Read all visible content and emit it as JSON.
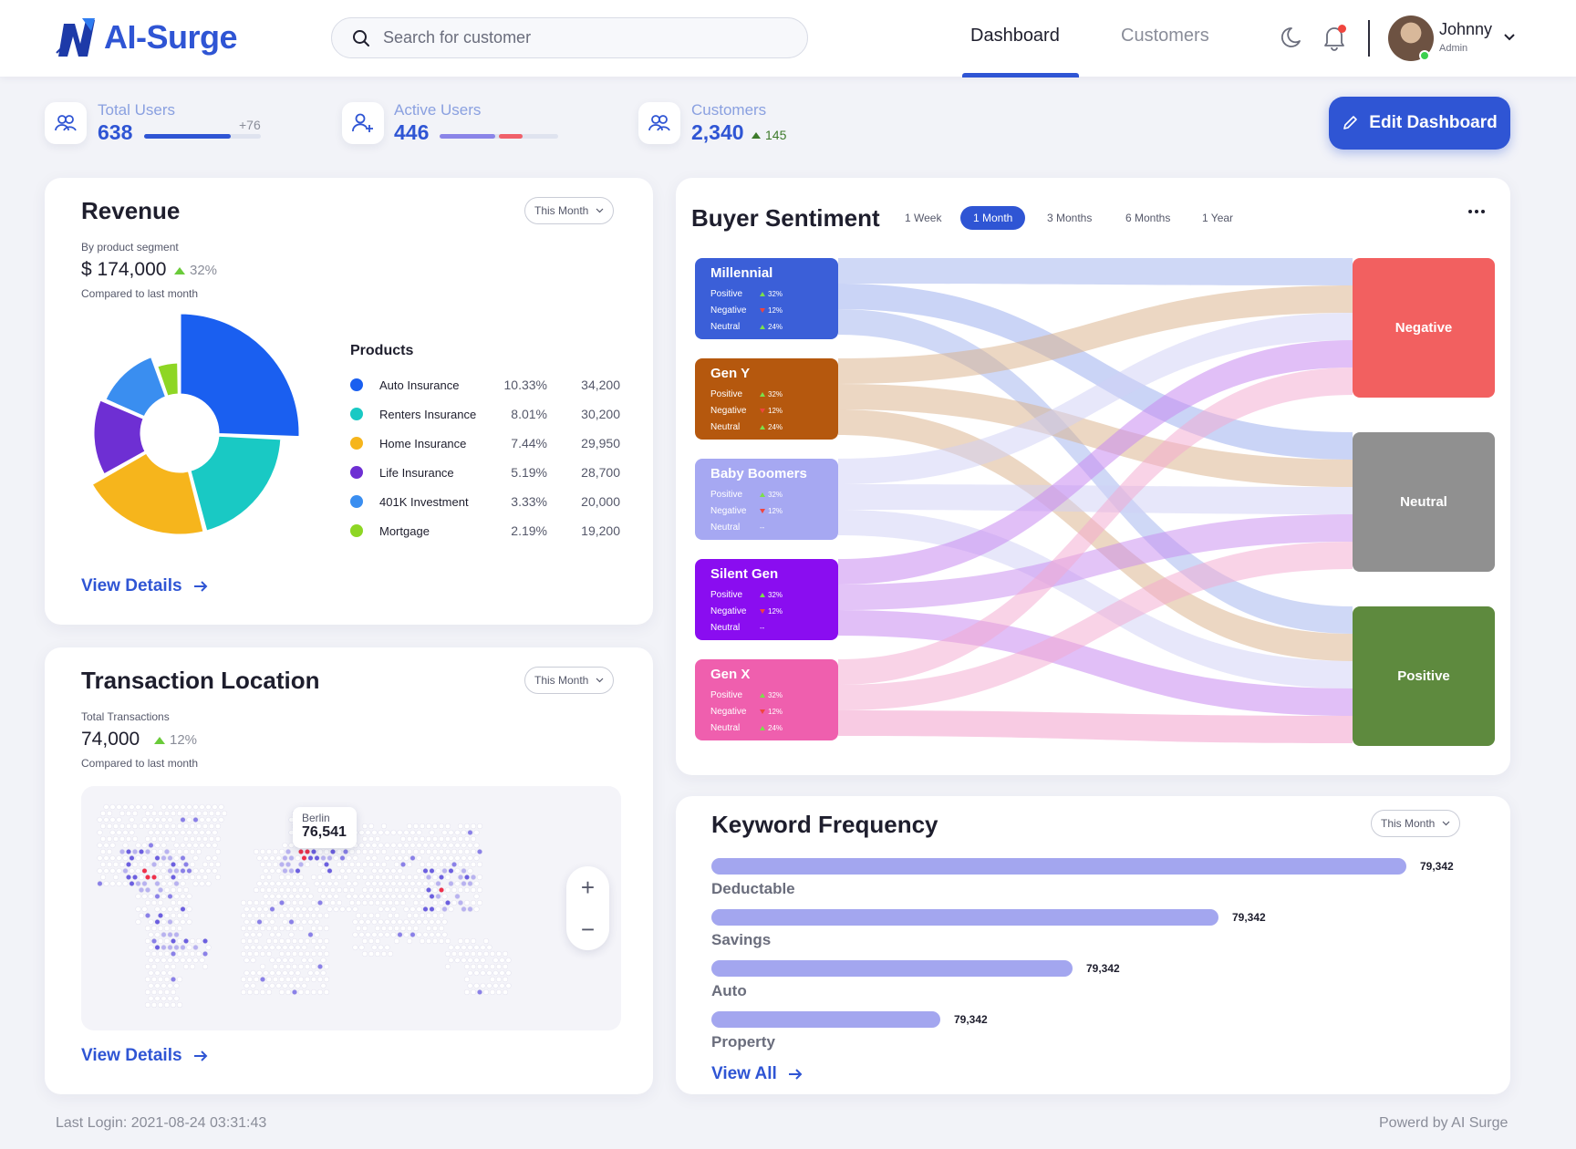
{
  "app": {
    "logo_text": "AI-Surge"
  },
  "header": {
    "search_placeholder": "Search for customer",
    "nav": {
      "dashboard": "Dashboard",
      "customers": "Customers"
    },
    "user": {
      "name": "Johnny",
      "role": "Admin"
    }
  },
  "stats": {
    "total_users": {
      "label": "Total Users",
      "value": "638",
      "delta": "+76",
      "progress": 0.74
    },
    "active_users": {
      "label": "Active Users",
      "value": "446",
      "segments": [
        0.47,
        0.2
      ]
    },
    "customers": {
      "label": "Customers",
      "value": "2,340",
      "delta": "145"
    }
  },
  "edit_dashboard_label": "Edit Dashboard",
  "revenue": {
    "title": "Revenue",
    "period": "This Month",
    "subtitle": "By product segment",
    "amount": "$ 174,000",
    "change": "32%",
    "compare": "Compared to last month",
    "products_title": "Products",
    "view_details": "View Details",
    "colors": {
      "auto": "#1a5ff0",
      "renters": "#19c9c4",
      "home": "#f6b51c",
      "life": "#6e2fd3",
      "k401": "#3a8ef0",
      "mortgage": "#8ed624"
    },
    "products": [
      {
        "name": "Auto Insurance",
        "pct": "10.33%",
        "value": "34,200"
      },
      {
        "name": "Renters Insurance",
        "pct": "8.01%",
        "value": "30,200"
      },
      {
        "name": "Home Insurance",
        "pct": "7.44%",
        "value": "29,950"
      },
      {
        "name": "Life Insurance",
        "pct": "5.19%",
        "value": "28,700"
      },
      {
        "name": "401K Investment",
        "pct": "3.33%",
        "value": "20,000"
      },
      {
        "name": "Mortgage",
        "pct": "2.19%",
        "value": "19,200"
      }
    ]
  },
  "transactions": {
    "title": "Transaction Location",
    "period": "This Month",
    "label": "Total Transactions",
    "total": "74,000",
    "change": "12%",
    "compare": "Compared to last month",
    "tooltip_city": "Berlin",
    "tooltip_value": "76,541",
    "zoom_in": "+",
    "zoom_out": "−",
    "view_details": "View Details"
  },
  "sentiment": {
    "title": "Buyer Sentiment",
    "periods": [
      "1 Week",
      "1 Month",
      "3 Months",
      "6 Months",
      "1 Year"
    ],
    "active_period": "1 Month",
    "line_labels": {
      "positive": "Positive",
      "negative": "Negative",
      "neutral": "Neutral"
    },
    "segments": [
      {
        "name": "Millennial",
        "positive": "32%",
        "negative": "12%",
        "neutral": "24%",
        "color": "#3b5fd8"
      },
      {
        "name": "Gen Y",
        "positive": "32%",
        "negative": "12%",
        "neutral": "24%",
        "color": "#b5580e"
      },
      {
        "name": "Baby Boomers",
        "positive": "32%",
        "negative": "12%",
        "neutral": "--",
        "color": "#a6a8f2"
      },
      {
        "name": "Silent Gen",
        "positive": "32%",
        "negative": "12%",
        "neutral": "--",
        "color": "#8a0df0"
      },
      {
        "name": "Gen X",
        "positive": "32%",
        "negative": "12%",
        "neutral": "24%",
        "color": "#ef5fae"
      }
    ],
    "targets": [
      {
        "name": "Negative",
        "color": "#f26060"
      },
      {
        "name": "Neutral",
        "color": "#909090"
      },
      {
        "name": "Positive",
        "color": "#5e8a3e"
      }
    ]
  },
  "keywords": {
    "title": "Keyword Frequency",
    "period": "This Month",
    "view_all": "View All",
    "max": 79342,
    "items": [
      {
        "label": "Deductable",
        "value": "79,342",
        "share": 1.0
      },
      {
        "label": "Savings",
        "value": "79,342",
        "share": 0.73
      },
      {
        "label": "Auto",
        "value": "79,342",
        "share": 0.52
      },
      {
        "label": "Property",
        "value": "79,342",
        "share": 0.33
      }
    ]
  },
  "footer": {
    "last_login": "Last  Login: 2021-08-24 03:31:43",
    "powered": "Powerd by AI Surge"
  }
}
